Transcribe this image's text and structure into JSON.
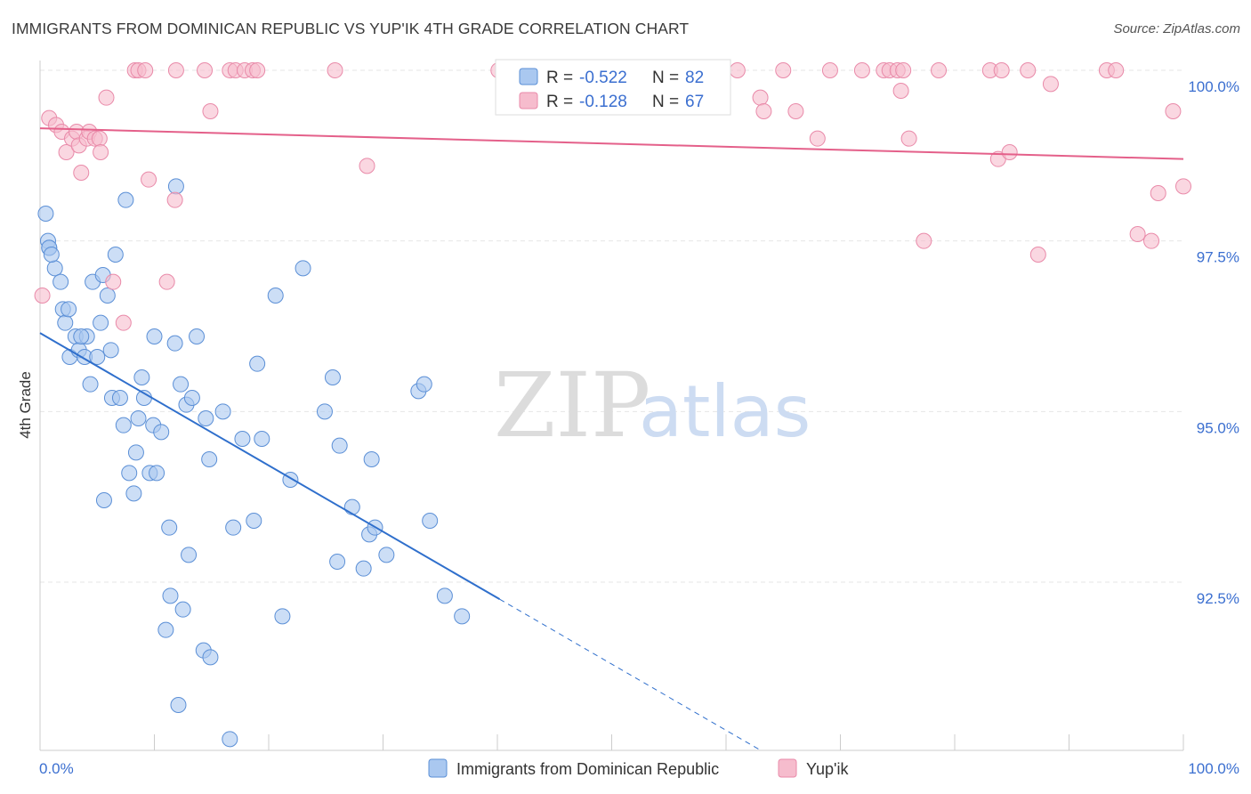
{
  "title": "IMMIGRANTS FROM DOMINICAN REPUBLIC VS YUP'IK 4TH GRADE CORRELATION CHART",
  "source": "Source: ZipAtlas.com",
  "watermark": {
    "zip": "ZIP",
    "atlas": "atlas"
  },
  "legend_box": {
    "rows": [
      {
        "r_label": "R =",
        "r_value": "-0.522",
        "n_label": "N =",
        "n_value": "82"
      },
      {
        "r_label": "R =",
        "r_value": "-0.128",
        "n_label": "N =",
        "n_value": "67"
      }
    ]
  },
  "colors": {
    "blue_fill": "#aac8f0",
    "blue_stroke": "#5b8fd6",
    "blue_line": "#2f6fcc",
    "pink_fill": "#f6bccd",
    "pink_stroke": "#e98aa9",
    "pink_line": "#e4608a"
  },
  "chart_data": {
    "type": "scatter",
    "xlabel": "",
    "ylabel": "4th Grade",
    "xlim": [
      0,
      100
    ],
    "ylim": [
      90.2,
      100.2
    ],
    "x_tick_labels": [
      "0.0%",
      "100.0%"
    ],
    "y_ticks": [
      92.5,
      95.0,
      97.5,
      100.0
    ],
    "y_tick_labels": [
      "92.5%",
      "95.0%",
      "97.5%",
      "100.0%"
    ],
    "grid": true,
    "legend_position": "bottom",
    "series": [
      {
        "name": "Immigrants from Dominican Republic",
        "color": "blue",
        "trend": {
          "x0": 0.0,
          "y0": 96.15,
          "x1": 40.2,
          "y1": 92.25,
          "x_dash_end": 63.0
        },
        "points": [
          [
            0.5,
            97.9
          ],
          [
            0.7,
            97.5
          ],
          [
            0.8,
            97.4
          ],
          [
            0.8,
            97.4
          ],
          [
            1.3,
            97.1
          ],
          [
            1.8,
            96.9
          ],
          [
            2.0,
            96.5
          ],
          [
            2.2,
            96.3
          ],
          [
            2.5,
            96.5
          ],
          [
            2.6,
            95.8
          ],
          [
            3.1,
            96.1
          ],
          [
            3.4,
            95.9
          ],
          [
            3.9,
            95.8
          ],
          [
            4.1,
            96.1
          ],
          [
            4.4,
            95.4
          ],
          [
            4.6,
            96.9
          ],
          [
            5.0,
            95.8
          ],
          [
            5.3,
            96.3
          ],
          [
            5.5,
            97.0
          ],
          [
            5.9,
            96.7
          ],
          [
            6.2,
            95.9
          ],
          [
            6.3,
            95.2
          ],
          [
            6.6,
            97.3
          ],
          [
            7.0,
            95.2
          ],
          [
            7.3,
            94.8
          ],
          [
            7.5,
            98.1
          ],
          [
            7.8,
            94.1
          ],
          [
            8.2,
            93.8
          ],
          [
            8.4,
            94.4
          ],
          [
            8.6,
            94.9
          ],
          [
            8.9,
            95.5
          ],
          [
            9.1,
            95.2
          ],
          [
            9.6,
            94.1
          ],
          [
            9.9,
            94.8
          ],
          [
            10.0,
            96.1
          ],
          [
            10.2,
            94.1
          ],
          [
            10.6,
            94.7
          ],
          [
            11.0,
            91.8
          ],
          [
            11.3,
            93.3
          ],
          [
            11.4,
            92.3
          ],
          [
            11.8,
            96.0
          ],
          [
            11.9,
            98.3
          ],
          [
            12.1,
            90.7
          ],
          [
            12.3,
            95.4
          ],
          [
            12.5,
            92.1
          ],
          [
            12.8,
            95.1
          ],
          [
            13.0,
            92.9
          ],
          [
            13.3,
            95.2
          ],
          [
            13.7,
            96.1
          ],
          [
            14.3,
            91.5
          ],
          [
            14.5,
            94.9
          ],
          [
            14.8,
            94.3
          ],
          [
            14.9,
            91.4
          ],
          [
            16.0,
            95.0
          ],
          [
            16.6,
            90.2
          ],
          [
            16.9,
            93.3
          ],
          [
            17.7,
            94.6
          ],
          [
            18.7,
            93.4
          ],
          [
            19.0,
            95.7
          ],
          [
            19.4,
            94.6
          ],
          [
            20.6,
            96.7
          ],
          [
            21.2,
            92.0
          ],
          [
            21.9,
            94.0
          ],
          [
            23.0,
            97.1
          ],
          [
            24.9,
            95.0
          ],
          [
            25.6,
            95.5
          ],
          [
            26.0,
            92.8
          ],
          [
            26.2,
            94.5
          ],
          [
            27.3,
            93.6
          ],
          [
            28.3,
            92.7
          ],
          [
            28.8,
            93.2
          ],
          [
            29.0,
            94.3
          ],
          [
            29.3,
            93.3
          ],
          [
            30.3,
            92.9
          ],
          [
            33.1,
            95.3
          ],
          [
            33.6,
            95.4
          ],
          [
            34.1,
            93.4
          ],
          [
            35.4,
            92.3
          ],
          [
            36.9,
            92.0
          ],
          [
            3.6,
            96.1
          ],
          [
            5.6,
            93.7
          ],
          [
            1.0,
            97.3
          ]
        ]
      },
      {
        "name": "Yup'ik",
        "color": "pink",
        "trend": {
          "x0": 0.0,
          "y0": 99.15,
          "x1": 100.0,
          "y1": 98.7
        },
        "points": [
          [
            0.2,
            96.7
          ],
          [
            0.8,
            99.3
          ],
          [
            1.4,
            99.2
          ],
          [
            1.9,
            99.1
          ],
          [
            2.3,
            98.8
          ],
          [
            2.8,
            99.0
          ],
          [
            3.2,
            99.1
          ],
          [
            3.4,
            98.9
          ],
          [
            3.6,
            98.5
          ],
          [
            4.1,
            99.0
          ],
          [
            4.3,
            99.1
          ],
          [
            4.8,
            99.0
          ],
          [
            5.2,
            99.0
          ],
          [
            5.3,
            98.8
          ],
          [
            5.8,
            99.6
          ],
          [
            6.4,
            96.9
          ],
          [
            7.3,
            96.3
          ],
          [
            8.3,
            100.0
          ],
          [
            8.6,
            100.0
          ],
          [
            9.2,
            100.0
          ],
          [
            9.5,
            98.4
          ],
          [
            11.1,
            96.9
          ],
          [
            11.8,
            98.1
          ],
          [
            11.9,
            100.0
          ],
          [
            14.4,
            100.0
          ],
          [
            14.9,
            99.4
          ],
          [
            16.6,
            100.0
          ],
          [
            17.1,
            100.0
          ],
          [
            17.9,
            100.0
          ],
          [
            18.6,
            100.0
          ],
          [
            19.0,
            100.0
          ],
          [
            25.8,
            100.0
          ],
          [
            28.6,
            98.6
          ],
          [
            40.1,
            100.0
          ],
          [
            41.2,
            100.0
          ],
          [
            45.3,
            100.0
          ],
          [
            58.1,
            100.0
          ],
          [
            61.0,
            100.0
          ],
          [
            63.0,
            99.6
          ],
          [
            63.3,
            99.4
          ],
          [
            65.0,
            100.0
          ],
          [
            66.1,
            99.4
          ],
          [
            68.0,
            99.0
          ],
          [
            69.1,
            100.0
          ],
          [
            71.9,
            100.0
          ],
          [
            73.8,
            100.0
          ],
          [
            74.3,
            100.0
          ],
          [
            75.0,
            100.0
          ],
          [
            75.3,
            99.7
          ],
          [
            75.5,
            100.0
          ],
          [
            76.0,
            99.0
          ],
          [
            77.3,
            97.5
          ],
          [
            78.6,
            100.0
          ],
          [
            83.1,
            100.0
          ],
          [
            83.8,
            98.7
          ],
          [
            84.1,
            100.0
          ],
          [
            84.8,
            98.8
          ],
          [
            86.4,
            100.0
          ],
          [
            87.3,
            97.3
          ],
          [
            88.4,
            99.8
          ],
          [
            93.3,
            100.0
          ],
          [
            94.1,
            100.0
          ],
          [
            96.0,
            97.6
          ],
          [
            97.2,
            97.5
          ],
          [
            97.8,
            98.2
          ],
          [
            99.1,
            99.4
          ],
          [
            100.0,
            98.3
          ]
        ]
      }
    ],
    "extra_pink_points_note_removed": []
  }
}
